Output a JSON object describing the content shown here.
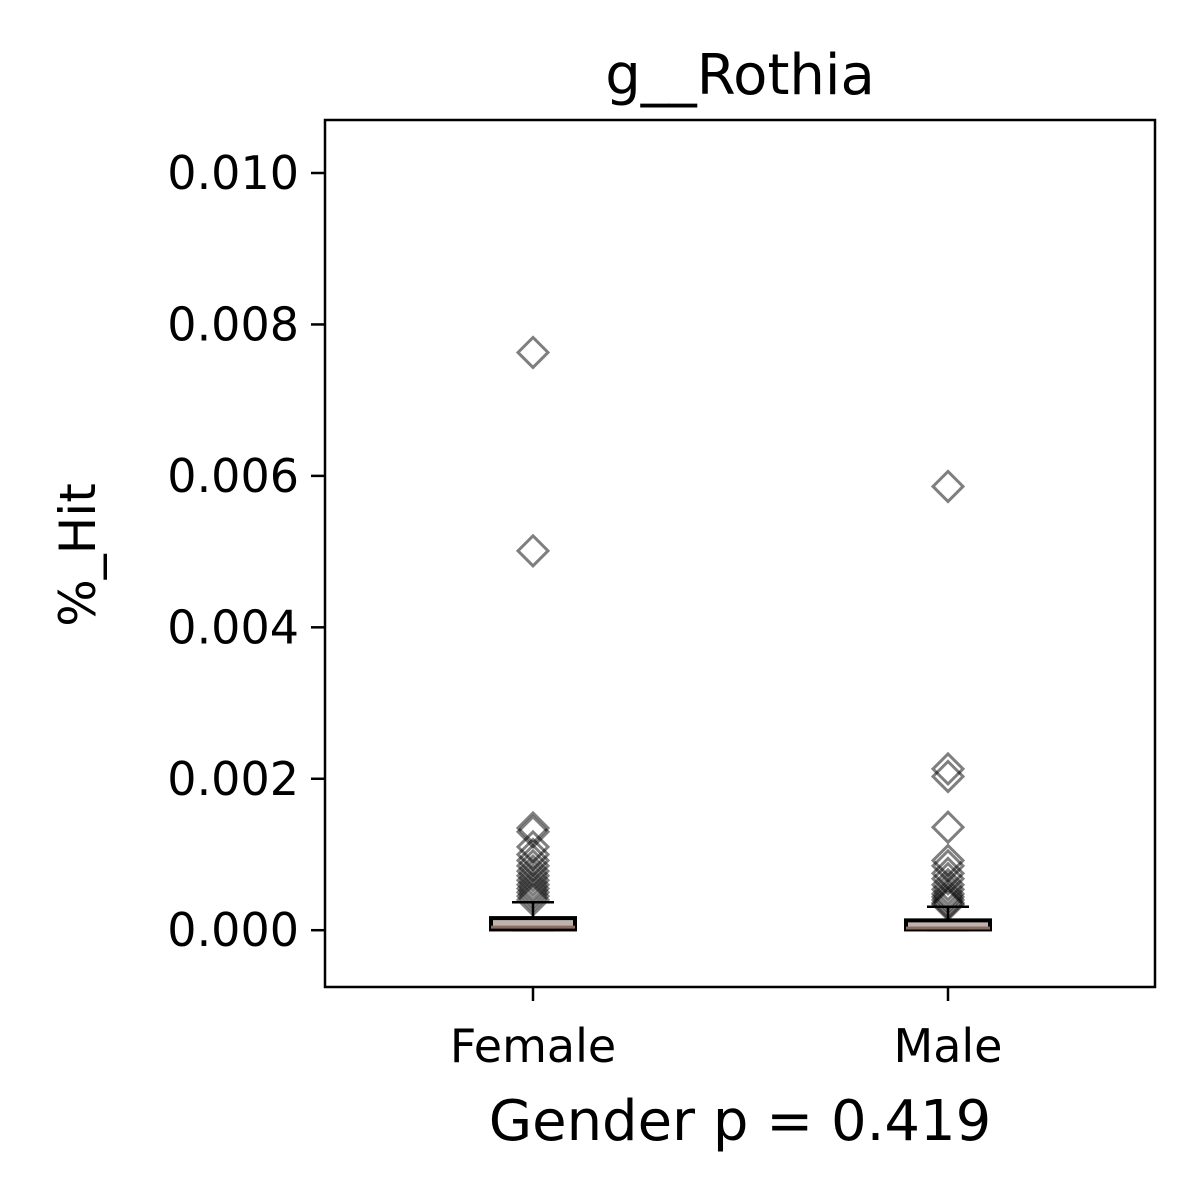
{
  "chart_data": {
    "type": "box",
    "title": "g__Rothia",
    "xlabel": "Gender p = 0.419",
    "ylabel": "%_Hit",
    "ylim": [
      -0.00075,
      0.0107
    ],
    "yticks": [
      "0.000",
      "0.002",
      "0.004",
      "0.006",
      "0.008",
      "0.010"
    ],
    "yticks_values": [
      0,
      0.002,
      0.004,
      0.006,
      0.008,
      0.01
    ],
    "grid": false,
    "categories": [
      "Female",
      "Male"
    ],
    "boxes": [
      {
        "category": "Female",
        "q1": 1e-05,
        "median": 4e-05,
        "q3": 0.00016,
        "whisker_low": 0.0,
        "whisker_high": 0.00037,
        "outliers": [
          0.00763,
          0.00501,
          0.00135,
          0.0013,
          0.0011,
          0.001,
          0.00092,
          0.00085,
          0.00078,
          0.00072,
          0.00066,
          0.0006,
          0.00055,
          0.0005,
          0.00045,
          0.0004
        ]
      },
      {
        "category": "Male",
        "q1": 1e-05,
        "median": 3e-05,
        "q3": 0.00013,
        "whisker_low": 0.0,
        "whisker_high": 0.00031,
        "outliers": [
          0.00586,
          0.00213,
          0.00203,
          0.00136,
          0.00092,
          0.00085,
          0.00075,
          0.00068,
          0.0006,
          0.00054,
          0.00048,
          0.00044,
          0.0004,
          0.00036,
          0.00034
        ]
      }
    ],
    "colors": {
      "box_fill": "#bfb3ad",
      "box_edge": "#000000",
      "median": "#8c6d62",
      "outlier_edge": "#000000"
    }
  }
}
